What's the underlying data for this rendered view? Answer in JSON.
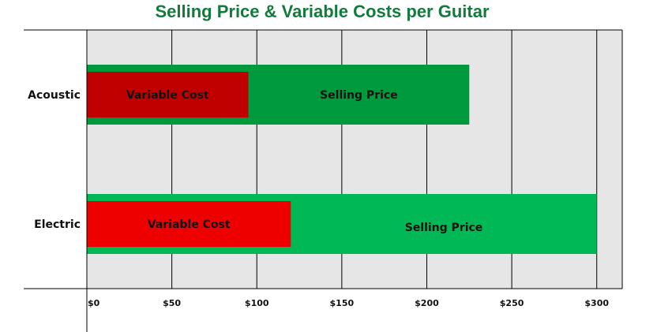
{
  "chart_data": {
    "type": "bar",
    "orientation": "horizontal",
    "title": "Selling Price & Variable Costs per Guitar",
    "categories": [
      "Acoustic",
      "Electric"
    ],
    "series": [
      {
        "name": "Selling Price",
        "values": [
          225,
          300
        ],
        "colors": [
          "#009a3e",
          "#00b956"
        ]
      },
      {
        "name": "Variable Cost",
        "values": [
          95,
          120
        ],
        "colors": [
          "#c00000",
          "#ee0000"
        ]
      }
    ],
    "xlim": [
      0,
      315
    ],
    "xticks": [
      0,
      50,
      100,
      150,
      200,
      250,
      300
    ],
    "xtick_labels": [
      "$0",
      "$50",
      "$100",
      "$150",
      "$200",
      "$250",
      "$300"
    ],
    "grid": true,
    "background": "#e6e6e6",
    "title_color": "#127a3d"
  }
}
